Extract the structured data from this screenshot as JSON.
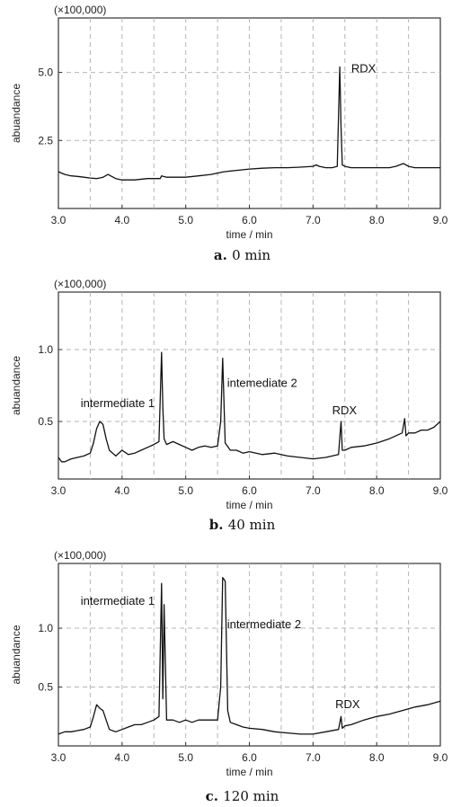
{
  "chart_data": [
    {
      "type": "line",
      "panel_letter": "a.",
      "caption": "0 min",
      "multiplier_label": "(×100,000)",
      "xlabel": "time / min",
      "ylabel": "abuandance",
      "xlim": [
        3.0,
        9.0
      ],
      "ylim": [
        0.0,
        7.0
      ],
      "xticks": [
        "3.0",
        "4.0",
        "5.0",
        "6.0",
        "7.0",
        "8.0",
        "9.0"
      ],
      "yticks": [
        "2.5",
        "5.0"
      ],
      "grid": true,
      "annotations": [
        {
          "label": "RDX",
          "x": 7.6,
          "y": 5.0
        }
      ],
      "series": [
        {
          "x": [
            3.0,
            3.05,
            3.1,
            3.2,
            3.3,
            3.4,
            3.5,
            3.6,
            3.7,
            3.78,
            3.82,
            3.9,
            4.0,
            4.2,
            4.4,
            4.6,
            4.62,
            4.7,
            4.8,
            5.0,
            5.2,
            5.4,
            5.6,
            5.8,
            6.0,
            6.2,
            6.4,
            6.6,
            6.8,
            7.0,
            7.05,
            7.1,
            7.2,
            7.3,
            7.38,
            7.42,
            7.44,
            7.46,
            7.5,
            7.6,
            7.8,
            8.0,
            8.2,
            8.3,
            8.42,
            8.5,
            8.6,
            8.8,
            9.0
          ],
          "y": [
            1.35,
            1.3,
            1.25,
            1.2,
            1.18,
            1.15,
            1.12,
            1.1,
            1.15,
            1.25,
            1.2,
            1.1,
            1.05,
            1.05,
            1.1,
            1.1,
            1.2,
            1.15,
            1.15,
            1.15,
            1.2,
            1.25,
            1.35,
            1.4,
            1.45,
            1.48,
            1.5,
            1.5,
            1.52,
            1.55,
            1.6,
            1.55,
            1.5,
            1.5,
            1.55,
            5.2,
            3.0,
            1.6,
            1.55,
            1.5,
            1.5,
            1.5,
            1.5,
            1.55,
            1.65,
            1.55,
            1.5,
            1.5,
            1.5
          ]
        }
      ]
    },
    {
      "type": "line",
      "panel_letter": "b.",
      "caption": "40 min",
      "multiplier_label": "(×100,000)",
      "xlabel": "time / min",
      "ylabel": "abuandance",
      "xlim": [
        3.0,
        9.0
      ],
      "ylim": [
        0.1,
        1.4
      ],
      "xticks": [
        "3.0",
        "4.0",
        "5.0",
        "6.0",
        "7.0",
        "8.0",
        "9.0"
      ],
      "yticks": [
        "0.5",
        "1.0"
      ],
      "grid": true,
      "annotations": [
        {
          "label": "intermediate 1",
          "x": 3.35,
          "y": 0.6
        },
        {
          "label": "intemediate 2",
          "x": 5.65,
          "y": 0.74
        },
        {
          "label": "RDX",
          "x": 7.3,
          "y": 0.55
        }
      ],
      "series": [
        {
          "x": [
            3.0,
            3.05,
            3.1,
            3.2,
            3.3,
            3.4,
            3.5,
            3.55,
            3.6,
            3.65,
            3.7,
            3.75,
            3.8,
            3.9,
            4.0,
            4.1,
            4.2,
            4.3,
            4.4,
            4.5,
            4.58,
            4.62,
            4.64,
            4.66,
            4.7,
            4.8,
            4.9,
            5.0,
            5.1,
            5.2,
            5.3,
            5.4,
            5.5,
            5.55,
            5.58,
            5.62,
            5.7,
            5.8,
            5.9,
            6.0,
            6.2,
            6.4,
            6.6,
            6.8,
            7.0,
            7.2,
            7.4,
            7.44,
            7.46,
            7.5,
            7.6,
            7.8,
            8.0,
            8.2,
            8.4,
            8.44,
            8.46,
            8.5,
            8.6,
            8.7,
            8.8,
            8.9,
            9.0
          ],
          "y": [
            0.25,
            0.22,
            0.22,
            0.24,
            0.25,
            0.26,
            0.28,
            0.35,
            0.45,
            0.5,
            0.48,
            0.38,
            0.3,
            0.26,
            0.3,
            0.27,
            0.28,
            0.3,
            0.32,
            0.34,
            0.36,
            0.98,
            0.6,
            0.38,
            0.34,
            0.36,
            0.34,
            0.32,
            0.3,
            0.32,
            0.33,
            0.32,
            0.33,
            0.5,
            0.94,
            0.35,
            0.3,
            0.3,
            0.28,
            0.29,
            0.27,
            0.28,
            0.26,
            0.25,
            0.24,
            0.25,
            0.27,
            0.5,
            0.3,
            0.3,
            0.32,
            0.33,
            0.35,
            0.38,
            0.42,
            0.52,
            0.4,
            0.42,
            0.42,
            0.44,
            0.44,
            0.46,
            0.5
          ]
        }
      ]
    },
    {
      "type": "line",
      "panel_letter": "c.",
      "caption": "120 min",
      "multiplier_label": "(×100,000)",
      "xlabel": "time / min",
      "ylabel": "abuandance",
      "xlim": [
        3.0,
        9.0
      ],
      "ylim": [
        0.0,
        1.55
      ],
      "xticks": [
        "3.0",
        "4.0",
        "5.0",
        "6.0",
        "7.0",
        "8.0",
        "9.0"
      ],
      "yticks": [
        "0.5",
        "1.0"
      ],
      "grid": true,
      "annotations": [
        {
          "label": "intermediate 1",
          "x": 3.35,
          "y": 1.2
        },
        {
          "label": "intermediate 2",
          "x": 5.65,
          "y": 1.0
        },
        {
          "label": "RDX",
          "x": 7.35,
          "y": 0.32
        }
      ],
      "series": [
        {
          "x": [
            3.0,
            3.1,
            3.2,
            3.3,
            3.4,
            3.5,
            3.55,
            3.6,
            3.65,
            3.7,
            3.75,
            3.8,
            3.9,
            4.0,
            4.1,
            4.2,
            4.3,
            4.4,
            4.5,
            4.58,
            4.62,
            4.64,
            4.66,
            4.7,
            4.8,
            4.9,
            5.0,
            5.1,
            5.2,
            5.3,
            5.4,
            5.5,
            5.55,
            5.58,
            5.62,
            5.66,
            5.7,
            5.8,
            5.9,
            6.0,
            6.2,
            6.4,
            6.6,
            6.8,
            7.0,
            7.2,
            7.4,
            7.44,
            7.46,
            7.5,
            7.6,
            7.8,
            8.0,
            8.2,
            8.4,
            8.6,
            8.8,
            9.0
          ],
          "y": [
            0.1,
            0.12,
            0.12,
            0.13,
            0.14,
            0.16,
            0.25,
            0.35,
            0.32,
            0.3,
            0.22,
            0.14,
            0.12,
            0.14,
            0.16,
            0.18,
            0.18,
            0.2,
            0.22,
            0.25,
            1.38,
            0.4,
            1.2,
            0.22,
            0.22,
            0.2,
            0.22,
            0.2,
            0.22,
            0.22,
            0.22,
            0.22,
            0.5,
            1.43,
            1.4,
            0.3,
            0.2,
            0.18,
            0.16,
            0.15,
            0.14,
            0.12,
            0.11,
            0.1,
            0.1,
            0.12,
            0.14,
            0.25,
            0.15,
            0.17,
            0.18,
            0.22,
            0.25,
            0.27,
            0.3,
            0.33,
            0.35,
            0.38
          ]
        }
      ]
    }
  ]
}
